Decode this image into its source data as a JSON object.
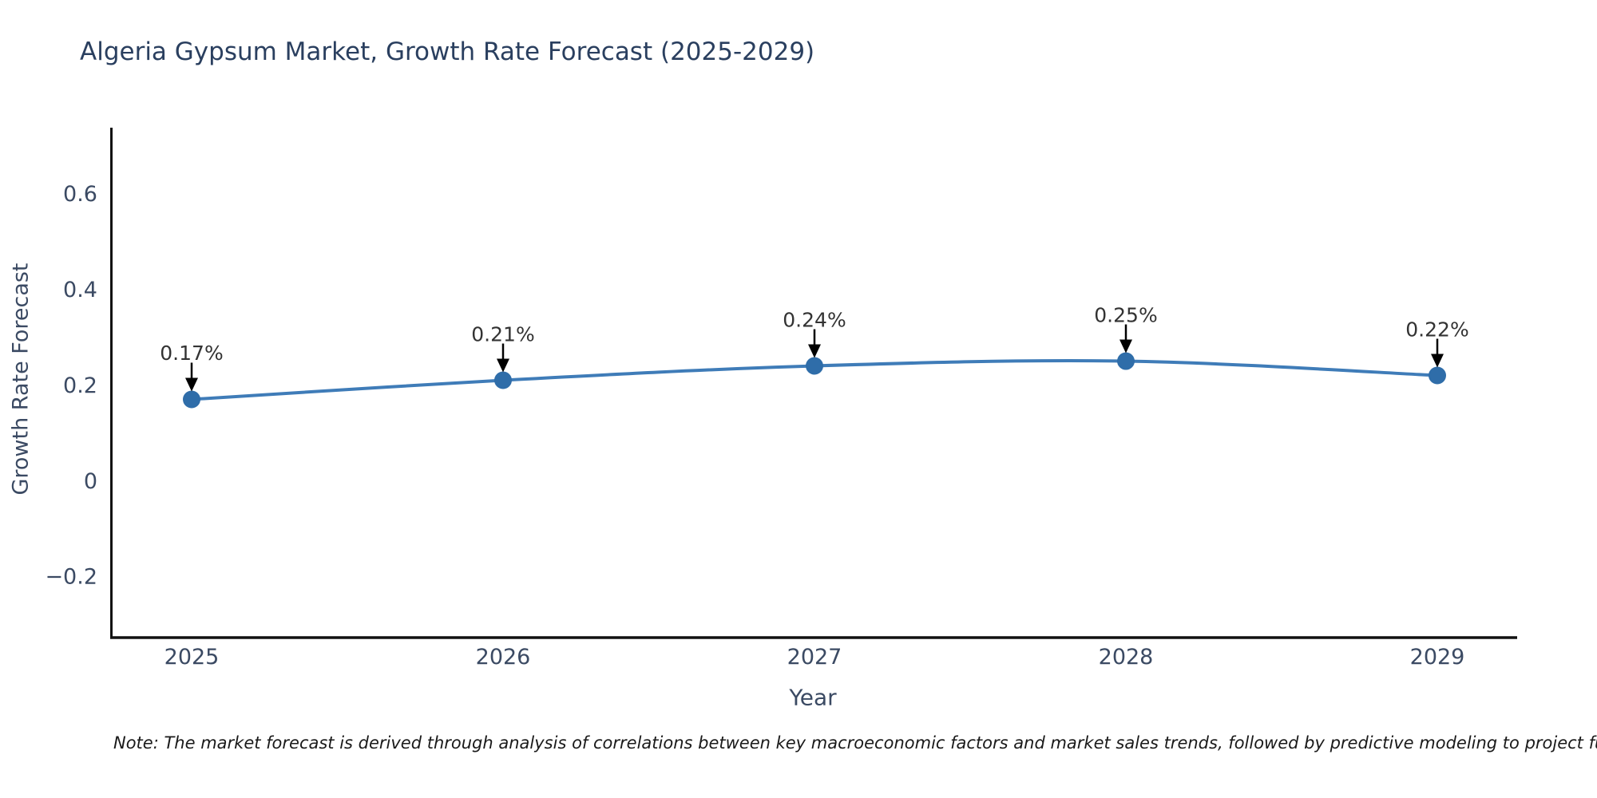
{
  "chart_data": {
    "type": "line",
    "title": "Algeria Gypsum Market, Growth Rate Forecast (2025-2029)",
    "xlabel": "Year",
    "ylabel": "Growth Rate Forecast",
    "categories": [
      "2025",
      "2026",
      "2027",
      "2028",
      "2029"
    ],
    "series": [
      {
        "name": "Growth Rate Forecast",
        "values": [
          0.17,
          0.21,
          0.24,
          0.25,
          0.22
        ],
        "point_labels": [
          "0.17%",
          "0.21%",
          "0.24%",
          "0.25%",
          "0.22%"
        ]
      }
    ],
    "yticks": [
      {
        "v": -0.2,
        "label": "−0.2"
      },
      {
        "v": 0,
        "label": "0"
      },
      {
        "v": 0.2,
        "label": "0.2"
      },
      {
        "v": 0.4,
        "label": "0.4"
      },
      {
        "v": 0.6,
        "label": "0.6"
      }
    ],
    "ylim": [
      -0.328,
      0.738
    ],
    "grid": false,
    "legend": "none",
    "colors": {
      "line": "#3f7cb8",
      "marker": "#2f6da9",
      "axis": "#111111",
      "annotation": "#333333",
      "arrow": "#000000",
      "title": "#2a3f5f",
      "tick": "#3b4a63"
    }
  },
  "footnote": {
    "text": "Note: The market forecast is derived through analysis of correlations between key macroeconomic factors and market sales trends, followed by predictive modeling to project future sales."
  }
}
